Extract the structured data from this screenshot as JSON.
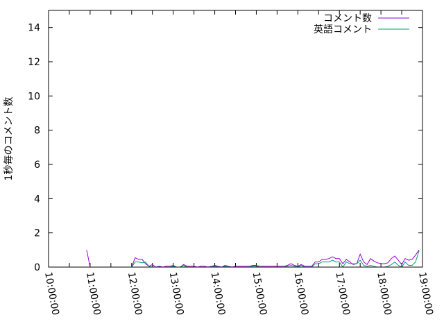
{
  "chart_data": {
    "type": "line",
    "title": "",
    "xlabel": "",
    "ylabel": "1秒毎のコメント数",
    "xlim": [
      "10:00:00",
      "19:00:00"
    ],
    "ylim": [
      0,
      15
    ],
    "x_tick_labels": [
      "10:00:00",
      "11:00:00",
      "12:00:00",
      "13:00:00",
      "14:00:00",
      "15:00:00",
      "16:00:00",
      "17:00:00",
      "18:00:00",
      "19:00:00"
    ],
    "y_tick_labels": [
      "0",
      "2",
      "4",
      "6",
      "8",
      "10",
      "12",
      "14"
    ],
    "grid": false,
    "legend_position": "top-right",
    "series": [
      {
        "name": "コメント数",
        "color": "#9400d3",
        "x": [
          "10:55",
          "11:00",
          "11:55",
          "12:00",
          "12:05",
          "12:10",
          "12:15",
          "12:20",
          "12:25",
          "12:30",
          "12:35",
          "12:40",
          "12:45",
          "12:50",
          "12:55",
          "13:00",
          "13:05",
          "13:10",
          "13:15",
          "13:20",
          "13:25",
          "13:30",
          "13:35",
          "13:40",
          "13:45",
          "13:50",
          "13:55",
          "14:00",
          "14:05",
          "14:10",
          "14:15",
          "14:20",
          "14:25",
          "14:30",
          "14:35",
          "14:40",
          "14:45",
          "14:50",
          "14:55",
          "15:00",
          "15:05",
          "15:10",
          "15:15",
          "15:20",
          "15:25",
          "15:30",
          "15:35",
          "15:40",
          "15:45",
          "15:50",
          "15:55",
          "16:00",
          "16:05",
          "16:10",
          "16:15",
          "16:20",
          "16:25",
          "16:30",
          "16:35",
          "16:40",
          "16:45",
          "16:50",
          "16:55",
          "17:00",
          "17:05",
          "17:10",
          "17:15",
          "17:20",
          "17:25",
          "17:30",
          "17:35",
          "17:40",
          "17:45",
          "17:50",
          "17:55",
          "18:00",
          "18:05",
          "18:10",
          "18:15",
          "18:20",
          "18:25",
          "18:30",
          "18:35",
          "18:40",
          "18:45",
          "18:50",
          "18:55"
        ],
        "y": [
          1.0,
          0,
          0,
          0,
          0.55,
          0.45,
          0.45,
          0.2,
          0.05,
          0.15,
          0,
          0.05,
          0,
          0.05,
          0.05,
          0.1,
          0,
          0,
          0.15,
          0.05,
          0.05,
          0.05,
          0,
          0.05,
          0.05,
          0,
          0.05,
          0.1,
          0.05,
          0,
          0.1,
          0.05,
          0,
          0.05,
          0.05,
          0.05,
          0.05,
          0.05,
          0.1,
          0.1,
          0.05,
          0.05,
          0.05,
          0.05,
          0.05,
          0.05,
          0.05,
          0.05,
          0.1,
          0.2,
          0.1,
          0.05,
          0.15,
          0.05,
          0.05,
          0.05,
          0.3,
          0.3,
          0.45,
          0.45,
          0.5,
          0.6,
          0.5,
          0.5,
          0.2,
          0.45,
          0.3,
          0.15,
          0.2,
          0.75,
          0.3,
          0.15,
          0.5,
          0.35,
          0.25,
          0.2,
          0.2,
          0.25,
          0.5,
          0.65,
          0.4,
          0.15,
          0.5,
          0.4,
          0.45,
          0.7,
          1.0
        ]
      },
      {
        "name": "英語コメント",
        "color": "#009e73",
        "x": [
          "12:00",
          "12:05",
          "12:10",
          "12:15",
          "12:20",
          "12:25",
          "12:30",
          "12:35",
          "12:40",
          "12:45",
          "12:50",
          "12:55",
          "13:00",
          "13:05",
          "13:10",
          "13:15",
          "13:20",
          "13:25",
          "13:30",
          "13:35",
          "13:40",
          "13:45",
          "13:50",
          "13:55",
          "14:00",
          "14:05",
          "14:10",
          "14:15",
          "14:20",
          "14:25",
          "14:30",
          "14:35",
          "14:40",
          "14:45",
          "14:50",
          "14:55",
          "15:00",
          "15:05",
          "15:10",
          "15:15",
          "15:20",
          "15:25",
          "15:30",
          "15:35",
          "15:40",
          "15:45",
          "15:50",
          "15:55",
          "16:00",
          "16:05",
          "16:10",
          "16:15",
          "16:20",
          "16:25",
          "16:30",
          "16:35",
          "16:40",
          "16:45",
          "16:50",
          "16:55",
          "17:00",
          "17:05",
          "17:10",
          "17:15",
          "17:20",
          "17:25",
          "17:30",
          "17:35",
          "17:40",
          "17:45",
          "17:50",
          "17:55",
          "18:00",
          "18:05",
          "18:10",
          "18:15",
          "18:20",
          "18:25",
          "18:30",
          "18:35",
          "18:40",
          "18:45",
          "18:50",
          "18:55"
        ],
        "y": [
          0,
          0.3,
          0.3,
          0.25,
          0.3,
          0.05,
          0,
          0,
          0,
          0,
          0,
          0,
          0.05,
          0,
          0,
          0.1,
          0,
          0,
          0,
          0,
          0,
          0,
          0,
          0,
          0.05,
          0,
          0,
          0.05,
          0,
          0,
          0,
          0,
          0,
          0,
          0,
          0.05,
          0.05,
          0,
          0,
          0,
          0,
          0,
          0,
          0,
          0,
          0.05,
          0.1,
          0.05,
          0,
          0.1,
          0,
          0,
          0,
          0.2,
          0.2,
          0.3,
          0.3,
          0.3,
          0.4,
          0.3,
          0.3,
          0,
          0.3,
          0.2,
          0.2,
          0.2,
          0.4,
          0.1,
          0.05,
          0.1,
          0.05,
          0,
          0,
          0,
          0.05,
          0.15,
          0.3,
          0.1,
          0,
          0.3,
          0.1,
          0.1,
          0.3,
          0.95
        ]
      }
    ]
  }
}
